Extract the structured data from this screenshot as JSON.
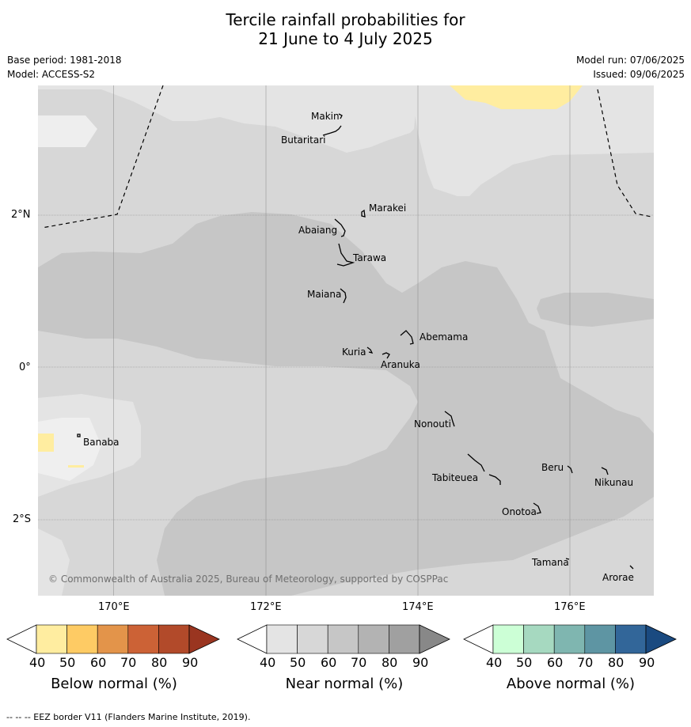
{
  "title": {
    "line1": "Tercile rainfall probabilities for",
    "line2": "21 June to 4 July 2025"
  },
  "meta": {
    "base_period": "Base period: 1981-2018",
    "model": "Model: ACCESS-S2",
    "model_run": "Model run: 07/06/2025",
    "issued": "Issued: 09/06/2025"
  },
  "axes": {
    "lat_ticks": [
      "2°N",
      "0°",
      "2°S"
    ],
    "lon_ticks": [
      "170°E",
      "172°E",
      "174°E",
      "176°E"
    ]
  },
  "places": [
    "Makin",
    "Butaritari",
    "Marakei",
    "Abaiang",
    "Tarawa",
    "Maiana",
    "Abemama",
    "Kuria",
    "Aranuka",
    "Banaba",
    "Nonouti",
    "Tabiteuea",
    "Beru",
    "Nikunau",
    "Onotoa",
    "Tamana",
    "Arorae"
  ],
  "copyright": "© Commonwealth of Australia 2025, Bureau of Meteorology, supported by COSPPac",
  "colorbars": [
    {
      "title": "Below normal (%)",
      "ticks": [
        "40",
        "50",
        "60",
        "70",
        "80",
        "90"
      ],
      "colors": [
        "#ffffff",
        "#ffeda0",
        "#fecb64",
        "#e3944a",
        "#cc6236",
        "#b24a2a",
        "#9a3520"
      ]
    },
    {
      "title": "Near normal (%)",
      "ticks": [
        "40",
        "50",
        "60",
        "70",
        "80",
        "90"
      ],
      "colors": [
        "#ffffff",
        "#e4e4e4",
        "#d7d7d7",
        "#c6c6c6",
        "#b3b3b3",
        "#a0a0a0",
        "#888888"
      ]
    },
    {
      "title": "Above normal (%)",
      "ticks": [
        "40",
        "50",
        "60",
        "70",
        "80",
        "90"
      ],
      "colors": [
        "#ffffff",
        "#ccffd6",
        "#a6d9c0",
        "#7fb6b0",
        "#5e95a3",
        "#326699",
        "#1a4a80"
      ]
    }
  ],
  "legend_note": "--  --  -- EEZ border V11 (Flanders Marine Institute, 2019)."
}
